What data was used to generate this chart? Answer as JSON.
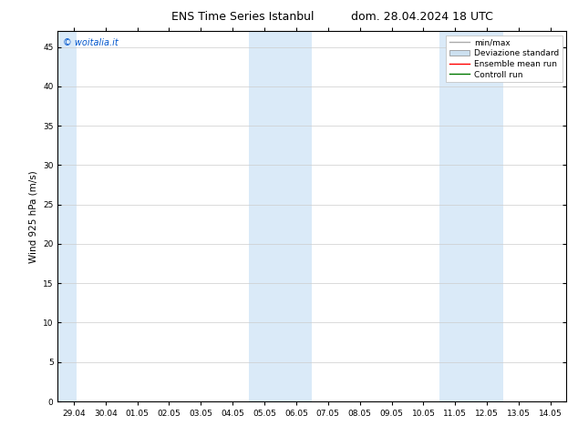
{
  "title_left": "ENS Time Series Istanbul",
  "title_right": "dom. 28.04.2024 18 UTC",
  "ylabel": "Wind 925 hPa (m/s)",
  "watermark": "© woitalia.it",
  "watermark_color": "#0055cc",
  "xlim_start": -0.5,
  "xlim_end": 15.5,
  "ylim": [
    0,
    47
  ],
  "yticks": [
    0,
    5,
    10,
    15,
    20,
    25,
    30,
    35,
    40,
    45
  ],
  "xtick_labels": [
    "29.04",
    "30.04",
    "01.05",
    "02.05",
    "03.05",
    "04.05",
    "05.05",
    "06.05",
    "07.05",
    "08.05",
    "09.05",
    "10.05",
    "11.05",
    "12.05",
    "13.05",
    "14.05"
  ],
  "shaded_bands": [
    {
      "xmin": -0.5,
      "xmax": 0.1,
      "color": "#daeaf8"
    },
    {
      "xmin": 5.5,
      "xmax": 7.5,
      "color": "#daeaf8"
    },
    {
      "xmin": 11.5,
      "xmax": 13.5,
      "color": "#daeaf8"
    }
  ],
  "legend_entries": [
    {
      "label": "min/max",
      "color": "#aaaaaa",
      "lw": 1.0,
      "type": "line"
    },
    {
      "label": "Deviazione standard",
      "color": "#cce0f0",
      "lw": 6,
      "type": "band"
    },
    {
      "label": "Ensemble mean run",
      "color": "#ff0000",
      "lw": 1.0,
      "type": "line"
    },
    {
      "label": "Controll run",
      "color": "#007700",
      "lw": 1.0,
      "type": "line"
    }
  ],
  "bg_color": "#ffffff",
  "plot_bg_color": "#ffffff",
  "grid_color": "#cccccc",
  "border_color": "#000000",
  "title_fontsize": 9,
  "tick_fontsize": 6.5,
  "ylabel_fontsize": 7.5,
  "watermark_fontsize": 7,
  "legend_fontsize": 6.5
}
